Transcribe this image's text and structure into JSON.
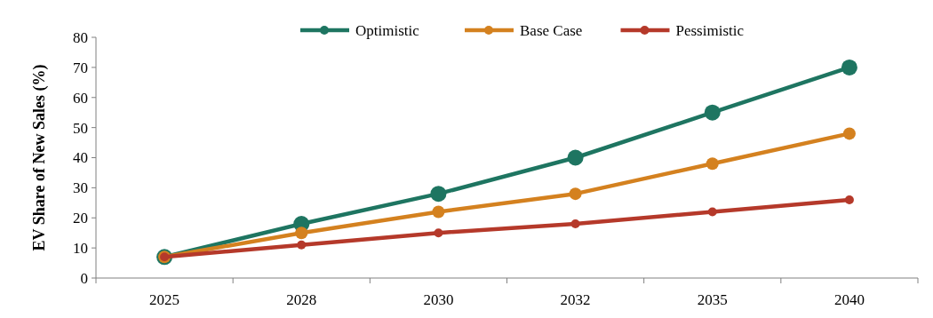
{
  "chart_data": {
    "type": "line",
    "ylabel": "EV Share of New Sales (%)",
    "categories": [
      "2025",
      "2028",
      "2030",
      "2032",
      "2035",
      "2040"
    ],
    "series": [
      {
        "name": "Optimistic",
        "color": "#1e7561",
        "values": [
          7,
          18,
          28,
          40,
          55,
          70
        ]
      },
      {
        "name": "Base Case",
        "color": "#d4811f",
        "values": [
          7,
          15,
          22,
          28,
          38,
          48
        ]
      },
      {
        "name": "Pessimistic",
        "color": "#b5392a",
        "values": [
          7,
          11,
          15,
          18,
          22,
          26
        ]
      }
    ],
    "ylim": [
      0,
      80
    ],
    "yticks": [
      0,
      10,
      20,
      30,
      40,
      50,
      60,
      70,
      80
    ],
    "grid": false,
    "legend": "top",
    "marker": "circle",
    "line_style": "solid"
  }
}
